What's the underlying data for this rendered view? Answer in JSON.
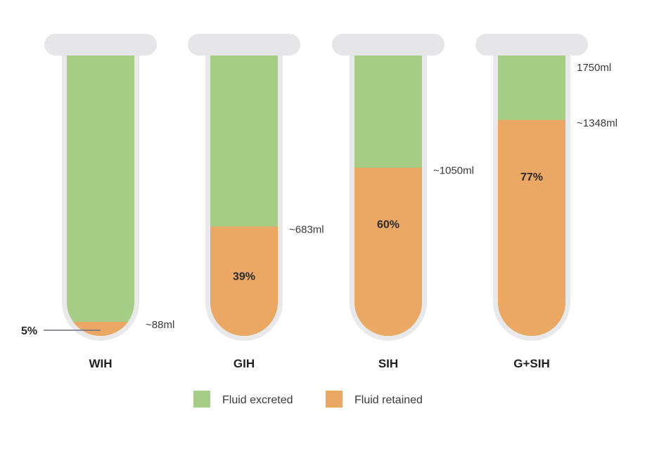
{
  "colors": {
    "excreted": "#a6cd86",
    "retained": "#eba764",
    "tube_outline": "#e9e9eb",
    "tube_cap": "#e6e6e8"
  },
  "chart_data": {
    "type": "bar",
    "stacked": true,
    "categories": [
      "WIH",
      "GIH",
      "SIH",
      "G+SIH"
    ],
    "capacity_ml": 1750,
    "capacity_label": "1750ml",
    "retained_percent": [
      5,
      39,
      60,
      77
    ],
    "retained_ml": [
      88,
      683,
      1050,
      1348
    ],
    "percent_labels": [
      "5%",
      "39%",
      "60%",
      "77%"
    ],
    "volume_labels": [
      "~88ml",
      "~683ml",
      "~1050ml",
      "~1348ml"
    ],
    "series": [
      {
        "name": "Fluid excreted",
        "color": "#a6cd86"
      },
      {
        "name": "Fluid retained",
        "color": "#eba764"
      }
    ],
    "legend_position": "bottom"
  }
}
